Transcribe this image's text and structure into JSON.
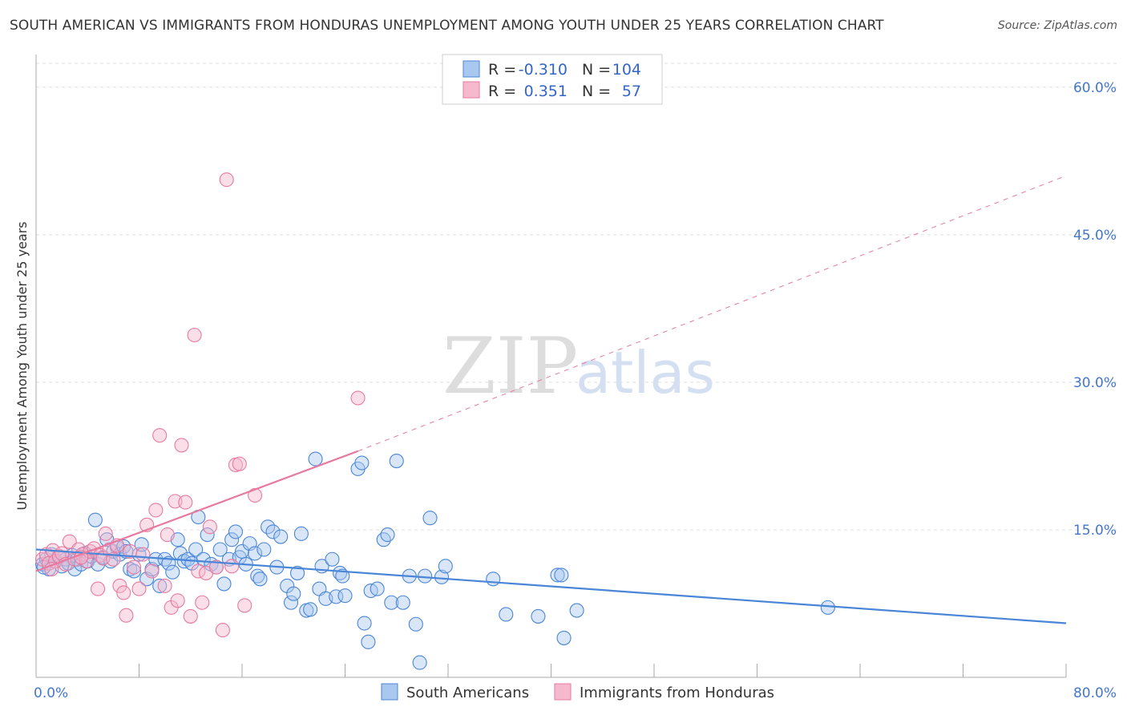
{
  "title": "SOUTH AMERICAN VS IMMIGRANTS FROM HONDURAS UNEMPLOYMENT AMONG YOUTH UNDER 25 YEARS CORRELATION CHART",
  "source": "Source: ZipAtlas.com",
  "watermark": {
    "zip": "ZIP",
    "atlas": "atlas"
  },
  "colors": {
    "blue": "#4a86d8",
    "blue_fill": "#a9c8f0",
    "pink": "#e87aa0",
    "pink_fill": "#f5b8cc",
    "tick": "#4477cc"
  },
  "legend": {
    "rows": [
      {
        "r_label": "R =",
        "r_value": "-0.310",
        "n_label": "N =",
        "n_value": "104"
      },
      {
        "r_label": "R =",
        "r_value": "0.351",
        "n_label": "N =",
        "n_value": "57"
      }
    ]
  },
  "bottom_legend": [
    "South Americans",
    "Immigrants from Honduras"
  ],
  "chart_data": {
    "type": "scatter",
    "title": "SOUTH AMERICAN VS IMMIGRANTS FROM HONDURAS UNEMPLOYMENT AMONG YOUTH UNDER 25 YEARS CORRELATION CHART",
    "xlabel": "",
    "ylabel": "Unemployment Among Youth under 25 years",
    "xlim": [
      0,
      80
    ],
    "ylim": [
      0,
      63
    ],
    "x_tick_labels": [
      "0.0%",
      "80.0%"
    ],
    "y_ticks": [
      15,
      30,
      45,
      60
    ],
    "y_tick_labels": [
      "15.0%",
      "30.0%",
      "45.0%",
      "60.0%"
    ],
    "grid": true,
    "legend_position": "top-center",
    "series": [
      {
        "name": "South Americans",
        "color": "#4a86d8",
        "trend": {
          "x0": 0,
          "y0": 13.0,
          "x1": 80,
          "y1": 5.5
        },
        "points": [
          [
            0.5,
            11.5
          ],
          [
            0.8,
            12.0
          ],
          [
            1.0,
            11.0
          ],
          [
            1.2,
            12.5
          ],
          [
            1.5,
            11.8
          ],
          [
            1.8,
            12.2
          ],
          [
            2.0,
            11.3
          ],
          [
            2.3,
            12.0
          ],
          [
            2.5,
            11.6
          ],
          [
            2.8,
            12.4
          ],
          [
            3.0,
            11.0
          ],
          [
            3.2,
            12.0
          ],
          [
            3.5,
            11.5
          ],
          [
            3.8,
            12.6
          ],
          [
            4.0,
            11.8
          ],
          [
            4.3,
            12.3
          ],
          [
            4.6,
            16.0
          ],
          [
            4.8,
            11.5
          ],
          [
            5.2,
            12.2
          ],
          [
            5.5,
            14.0
          ],
          [
            5.8,
            11.8
          ],
          [
            6.0,
            12.8
          ],
          [
            6.3,
            13.2
          ],
          [
            6.5,
            12.5
          ],
          [
            6.8,
            13.3
          ],
          [
            7.0,
            12.8
          ],
          [
            7.3,
            11.0
          ],
          [
            7.6,
            10.8
          ],
          [
            8.0,
            12.5
          ],
          [
            8.2,
            13.5
          ],
          [
            8.6,
            10.0
          ],
          [
            9.0,
            11.0
          ],
          [
            9.3,
            12.0
          ],
          [
            9.6,
            9.3
          ],
          [
            10.0,
            12.0
          ],
          [
            10.3,
            11.6
          ],
          [
            10.6,
            10.7
          ],
          [
            11.0,
            14.0
          ],
          [
            11.2,
            12.6
          ],
          [
            11.5,
            11.8
          ],
          [
            11.8,
            12.0
          ],
          [
            12.1,
            11.6
          ],
          [
            12.4,
            13.0
          ],
          [
            12.6,
            16.3
          ],
          [
            13.0,
            12.0
          ],
          [
            13.3,
            14.5
          ],
          [
            13.6,
            11.5
          ],
          [
            14.0,
            11.2
          ],
          [
            14.3,
            13.0
          ],
          [
            14.6,
            9.5
          ],
          [
            15.0,
            12.0
          ],
          [
            15.2,
            14.0
          ],
          [
            15.5,
            14.8
          ],
          [
            15.8,
            12.2
          ],
          [
            16.0,
            12.8
          ],
          [
            16.3,
            11.5
          ],
          [
            16.6,
            13.6
          ],
          [
            17.0,
            12.6
          ],
          [
            17.2,
            10.3
          ],
          [
            17.4,
            10.0
          ],
          [
            17.7,
            13.0
          ],
          [
            18.0,
            15.3
          ],
          [
            18.4,
            14.8
          ],
          [
            18.7,
            11.2
          ],
          [
            19.0,
            14.3
          ],
          [
            19.5,
            9.3
          ],
          [
            19.8,
            7.6
          ],
          [
            20.0,
            8.5
          ],
          [
            20.3,
            10.6
          ],
          [
            20.6,
            14.6
          ],
          [
            21.0,
            6.8
          ],
          [
            21.3,
            6.9
          ],
          [
            21.7,
            22.2
          ],
          [
            22.0,
            9.0
          ],
          [
            22.2,
            11.3
          ],
          [
            22.5,
            8.0
          ],
          [
            23.0,
            12.0
          ],
          [
            23.3,
            8.2
          ],
          [
            23.6,
            10.6
          ],
          [
            23.8,
            10.3
          ],
          [
            24.0,
            8.3
          ],
          [
            25.0,
            21.2
          ],
          [
            25.3,
            21.8
          ],
          [
            25.5,
            5.5
          ],
          [
            25.8,
            3.6
          ],
          [
            26.0,
            8.8
          ],
          [
            26.5,
            9.0
          ],
          [
            27.0,
            14.0
          ],
          [
            27.3,
            14.5
          ],
          [
            27.6,
            7.6
          ],
          [
            28.0,
            22.0
          ],
          [
            28.5,
            7.6
          ],
          [
            29.0,
            10.3
          ],
          [
            29.5,
            5.4
          ],
          [
            29.8,
            1.5
          ],
          [
            30.2,
            10.3
          ],
          [
            30.6,
            16.2
          ],
          [
            31.5,
            10.2
          ],
          [
            31.8,
            11.3
          ],
          [
            35.5,
            10.0
          ],
          [
            36.5,
            6.4
          ],
          [
            39.0,
            6.2
          ],
          [
            40.5,
            10.4
          ],
          [
            40.8,
            10.4
          ],
          [
            41.0,
            4.0
          ],
          [
            42.0,
            6.8
          ],
          [
            61.5,
            7.1
          ],
          [
            0.6,
            11.2
          ]
        ]
      },
      {
        "name": "Immigrants from Honduras",
        "color": "#e87aa0",
        "trend": {
          "x0": 0,
          "y0": 10.8,
          "x1": 25,
          "y1": 23.0,
          "x_dashed_end": 80,
          "y_dashed_end": 51.0
        },
        "points": [
          [
            0.5,
            12.0
          ],
          [
            0.8,
            12.5
          ],
          [
            1.0,
            11.6
          ],
          [
            1.3,
            12.9
          ],
          [
            1.5,
            11.8
          ],
          [
            1.8,
            12.3
          ],
          [
            2.0,
            12.6
          ],
          [
            2.3,
            11.5
          ],
          [
            2.6,
            13.8
          ],
          [
            3.0,
            12.0
          ],
          [
            3.3,
            13.0
          ],
          [
            3.6,
            12.5
          ],
          [
            3.9,
            11.8
          ],
          [
            4.2,
            12.8
          ],
          [
            4.5,
            13.1
          ],
          [
            4.8,
            9.0
          ],
          [
            5.0,
            12.4
          ],
          [
            5.2,
            12.1
          ],
          [
            5.4,
            14.6
          ],
          [
            5.7,
            13.0
          ],
          [
            6.0,
            12.0
          ],
          [
            6.3,
            13.4
          ],
          [
            6.5,
            9.3
          ],
          [
            6.8,
            8.6
          ],
          [
            7.0,
            6.3
          ],
          [
            7.3,
            12.8
          ],
          [
            7.6,
            11.2
          ],
          [
            8.0,
            9.0
          ],
          [
            8.3,
            12.5
          ],
          [
            8.6,
            15.5
          ],
          [
            9.0,
            10.8
          ],
          [
            9.3,
            17.0
          ],
          [
            9.6,
            24.6
          ],
          [
            10.0,
            9.3
          ],
          [
            10.2,
            14.5
          ],
          [
            10.5,
            7.1
          ],
          [
            10.8,
            17.9
          ],
          [
            11.0,
            7.8
          ],
          [
            11.3,
            23.6
          ],
          [
            11.6,
            17.8
          ],
          [
            12.0,
            6.2
          ],
          [
            12.3,
            34.8
          ],
          [
            12.6,
            10.8
          ],
          [
            12.9,
            7.6
          ],
          [
            13.2,
            10.6
          ],
          [
            13.5,
            15.3
          ],
          [
            14.0,
            11.2
          ],
          [
            14.5,
            4.8
          ],
          [
            14.8,
            50.6
          ],
          [
            15.2,
            11.3
          ],
          [
            15.5,
            21.6
          ],
          [
            15.8,
            21.7
          ],
          [
            16.2,
            7.3
          ],
          [
            17.0,
            18.5
          ],
          [
            25.0,
            28.4
          ],
          [
            1.2,
            11.0
          ],
          [
            3.5,
            12.2
          ]
        ]
      }
    ]
  }
}
